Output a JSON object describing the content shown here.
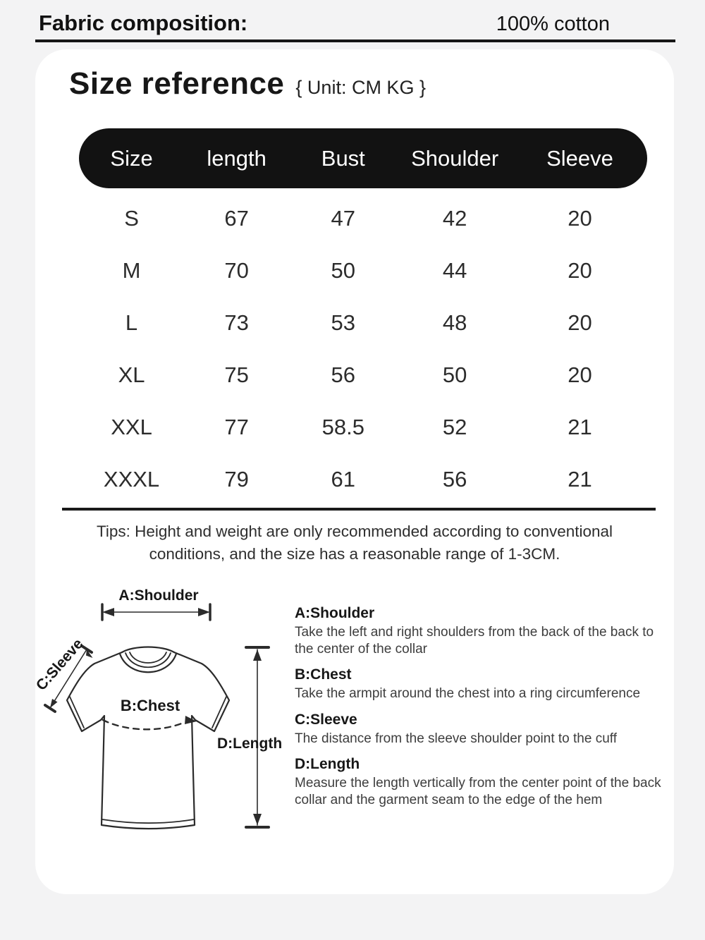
{
  "page": {
    "bg_color": "#f3f3f4",
    "card_color": "#ffffff"
  },
  "header": {
    "fabric_label": "Fabric composition:",
    "fabric_value": "100% cotton"
  },
  "size_reference": {
    "title": "Size reference",
    "unit_note": "{ Unit: CM KG }"
  },
  "size_table": {
    "header_bg": "#121212",
    "header_text_color": "#ffffff",
    "columns": [
      "Size",
      "length",
      "Bust",
      "Shoulder",
      "Sleeve"
    ],
    "rows": [
      [
        "S",
        "67",
        "47",
        "42",
        "20"
      ],
      [
        "M",
        "70",
        "50",
        "44",
        "20"
      ],
      [
        "L",
        "73",
        "53",
        "48",
        "20"
      ],
      [
        "XL",
        "75",
        "56",
        "50",
        "20"
      ],
      [
        "XXL",
        "77",
        "58.5",
        "52",
        "21"
      ],
      [
        "XXXL",
        "79",
        "61",
        "56",
        "21"
      ]
    ]
  },
  "tips": {
    "line1": "Tips: Height and weight are only recommended according to conventional",
    "line2": "conditions, and the size has a reasonable range of 1-3CM."
  },
  "diagram": {
    "labels": {
      "shoulder": "A:Shoulder",
      "sleeve": "C:Sleeve",
      "chest": "B:Chest",
      "length": "D:Length"
    }
  },
  "measure_guide": {
    "sections": [
      {
        "title": "A:Shoulder",
        "body": "Take the left and right shoulders from the back of the back to the center of the collar"
      },
      {
        "title": "B:Chest",
        "body": "Take the armpit around the chest into a ring circumference"
      },
      {
        "title": "C:Sleeve",
        "body": "The distance from the sleeve shoulder point to the cuff"
      },
      {
        "title": "D:Length",
        "body": "Measure the length vertically from the center point of the back collar and the garment seam to the edge of the hem"
      }
    ]
  }
}
